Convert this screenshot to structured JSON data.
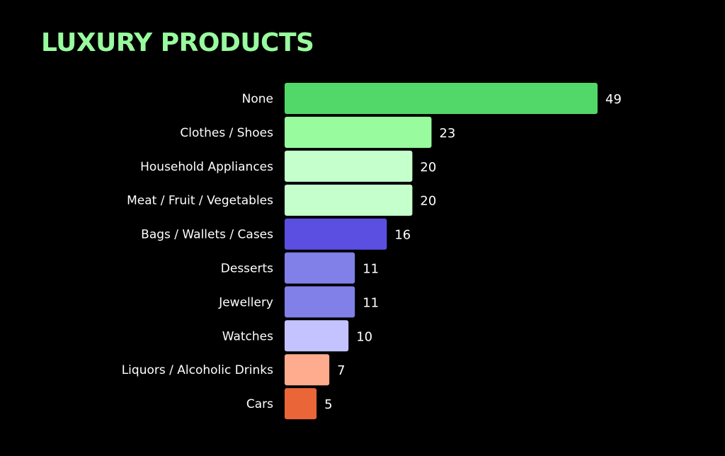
{
  "chart_data": {
    "type": "bar",
    "orientation": "horizontal",
    "title": "LUXURY PRODUCTS",
    "categories": [
      "None",
      "Clothes / Shoes",
      "Household Appliances",
      "Meat / Fruit / Vegetables",
      "Bags / Wallets / Cases",
      "Desserts",
      "Jewellery",
      "Watches",
      "Liquors / Alcoholic Drinks",
      "Cars"
    ],
    "values": [
      49,
      23,
      20,
      20,
      16,
      11,
      11,
      10,
      7,
      5
    ],
    "colors": [
      "#52d868",
      "#98fb9e",
      "#c5ffcb",
      "#c5ffcb",
      "#5a4fe0",
      "#8080e8",
      "#8080e8",
      "#c5c3ff",
      "#ffab8d",
      "#ea6538"
    ],
    "xlim": [
      0,
      49
    ],
    "grid": false,
    "data_labels": true,
    "background": "#000000",
    "title_color": "#98fb9e"
  }
}
